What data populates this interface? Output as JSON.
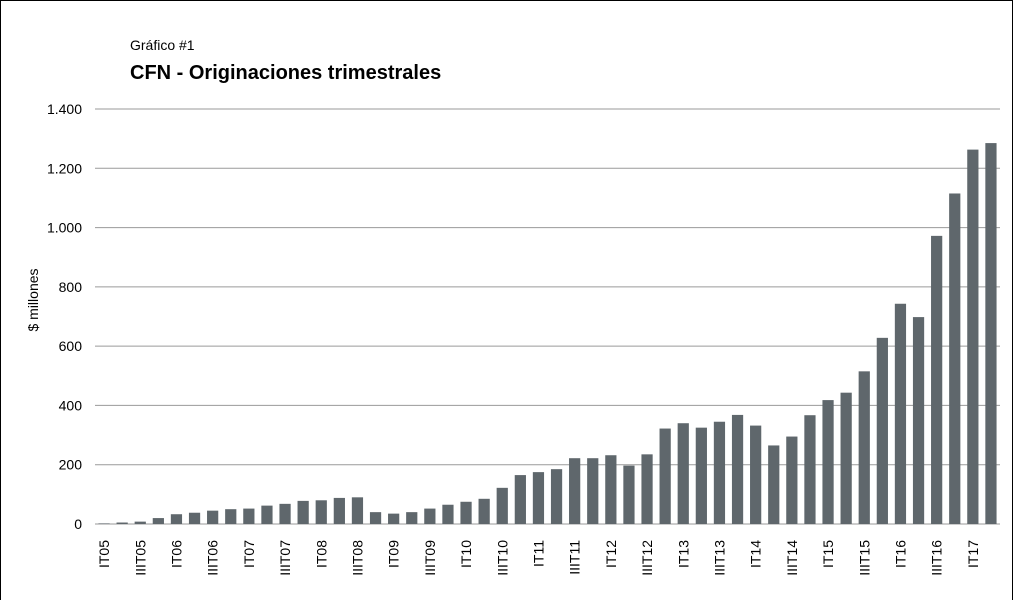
{
  "chart_data": {
    "type": "bar",
    "subtitle": "Gráfico #1",
    "title": "CFN - Originaciones trimestrales",
    "y_label": "$ millones",
    "categories": [
      "IT05",
      null,
      "IIIT05",
      null,
      "IT06",
      null,
      "IIIT06",
      null,
      "IT07",
      null,
      "IIIT07",
      null,
      "IT08",
      null,
      "IIIT08",
      null,
      "IT09",
      null,
      "IIIT09",
      null,
      "IT10",
      null,
      "IIIT10",
      null,
      "IT11",
      null,
      "IIIT11",
      null,
      "IT12",
      null,
      "IIIT12",
      null,
      "IT13",
      null,
      "IIIT13",
      null,
      "IT14",
      null,
      "IIIT14",
      null,
      "IT15",
      null,
      "IIIT15",
      null,
      "IT16",
      null,
      "IIIT16",
      null,
      "IT17",
      null
    ],
    "values": [
      2,
      5,
      8,
      20,
      33,
      38,
      45,
      50,
      52,
      62,
      68,
      78,
      80,
      88,
      90,
      40,
      35,
      40,
      52,
      65,
      75,
      85,
      122,
      165,
      175,
      185,
      222,
      222,
      232,
      197,
      235,
      322,
      340,
      325,
      345,
      368,
      332,
      265,
      295,
      367,
      418,
      443,
      515,
      628,
      743,
      698,
      972,
      1115,
      1263,
      1285
    ],
    "color": "#5f676c",
    "ylim": [
      0,
      1400
    ],
    "yticks": [
      0,
      200,
      400,
      600,
      800,
      {
        "value": 1000,
        "label": "1.000"
      },
      {
        "value": 1200,
        "label": "1.200"
      },
      {
        "value": 1400,
        "label": "1.400"
      }
    ],
    "grid": true
  }
}
